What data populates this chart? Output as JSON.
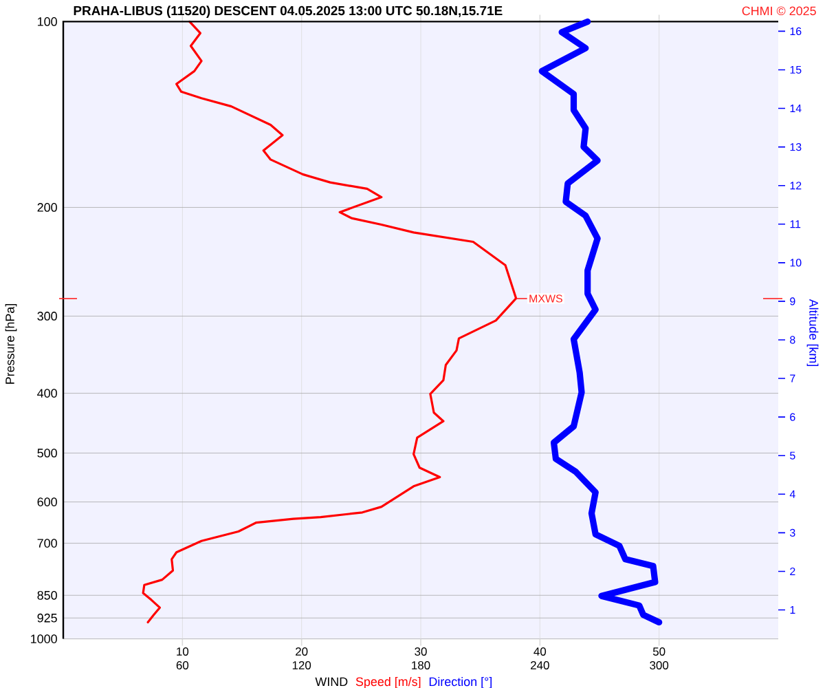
{
  "chart_data": {
    "type": "line",
    "orientation": "horizontal",
    "title": "PRAHA-LIBUS (11520)   DESCENT   04.05.2025 13:00 UTC   50.18N,15.71E",
    "xlabel": "WIND",
    "ylabel": "Pressure [hPa]",
    "y2label": "Altitude [km]",
    "log": "y",
    "grid": true,
    "legend": "bottom",
    "marker": "none",
    "line_style": "solid",
    "xlim": [
      0,
      60
    ],
    "xticks": [
      10,
      20,
      30,
      40,
      50
    ],
    "x2lim": [
      0,
      360
    ],
    "x2ticks": [
      60,
      120,
      180,
      240,
      300
    ],
    "ylim": [
      1000,
      100
    ],
    "yticks": [
      100,
      200,
      {
        "value": 281,
        "label": null
      },
      300,
      400,
      500,
      600,
      700,
      850,
      925,
      1000
    ],
    "y2lim": [
      0.25,
      16.25
    ],
    "y2ticks": [
      1,
      2,
      3,
      4,
      5,
      6,
      7,
      8,
      9,
      10,
      11,
      12,
      13,
      14,
      15,
      16
    ],
    "series": [
      {
        "name": "Speed [m/s]",
        "color": "#ff0000",
        "x": [
          100,
          104.4,
          109.5,
          115.8,
          120.3,
          126.2,
          129.9,
          133.1,
          137.2,
          147,
          152.8,
          161.7,
          167.3,
          176.8,
          182.2,
          186.6,
          192.5,
          203.6,
          208.2,
          213.3,
          219.6,
          227.4,
          248.1,
          280.8,
          305,
          326,
          341,
          360,
          381,
          401,
          430,
          444,
          472,
          502,
          528,
          547,
          566,
          611,
          624,
          635,
          639,
          648,
          670,
          694,
          724,
          743,
          775,
          802,
          818,
          843,
          865,
          890,
          914,
          940
        ],
        "values": [
          10.6,
          11.5,
          10.7,
          11.6,
          11.0,
          9.5,
          9.9,
          11.6,
          14.1,
          17.4,
          18.4,
          16.8,
          17.4,
          20.1,
          22.4,
          25.5,
          26.7,
          23.2,
          24.2,
          26.7,
          29.4,
          34.4,
          37.1,
          38.0,
          36.3,
          33.2,
          33.0,
          32.1,
          31.9,
          30.8,
          31.1,
          31.9,
          29.7,
          29.4,
          29.9,
          31.6,
          29.4,
          26.7,
          25.1,
          21.6,
          19.3,
          16.2,
          14.7,
          11.6,
          9.5,
          9.1,
          9.2,
          8.3,
          6.8,
          6.7,
          7.4,
          8.1,
          7.6,
          7.1
        ]
      },
      {
        "name": "Direction [°]",
        "color": "#0000ff",
        "axis": "x2",
        "x": [
          100,
          104,
          110.4,
          120.3,
          131,
          139.1,
          148.9,
          159.6,
          167.9,
          182.9,
          195.8,
          206.3,
          224.6,
          253,
          275.9,
          292.8,
          326.9,
          370.3,
          398.7,
          452.5,
          481,
          511,
          536,
          579,
          626,
          677,
          707,
          743,
          762,
          809,
          852,
          883,
          914,
          940
        ],
        "values": [
          264,
          251,
          263,
          241,
          257,
          257,
          263,
          262,
          269,
          254,
          253,
          263,
          269,
          264,
          264,
          268,
          257,
          260,
          261,
          257,
          247,
          248,
          258,
          268,
          266,
          268,
          280,
          283,
          297,
          298,
          271,
          290,
          292,
          300
        ]
      }
    ],
    "annotations": [
      {
        "text": "MXWS",
        "x": 38.0,
        "y": 281
      },
      "CHMI © 2025"
    ]
  }
}
